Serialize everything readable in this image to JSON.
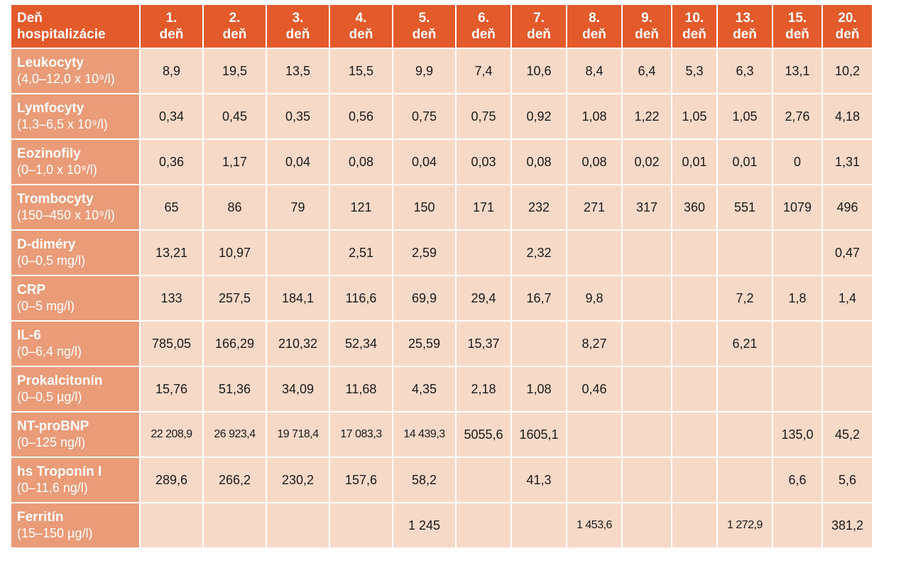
{
  "header": {
    "corner_line1": "Deň",
    "corner_line2": "hospitalizácie",
    "days": [
      {
        "num": "1.",
        "unit": "deň"
      },
      {
        "num": "2.",
        "unit": "deň"
      },
      {
        "num": "3.",
        "unit": "deň"
      },
      {
        "num": "4.",
        "unit": "deň"
      },
      {
        "num": "5.",
        "unit": "deň"
      },
      {
        "num": "6.",
        "unit": "deň"
      },
      {
        "num": "7.",
        "unit": "deň"
      },
      {
        "num": "8.",
        "unit": "deň"
      },
      {
        "num": "9.",
        "unit": "deň"
      },
      {
        "num": "10.",
        "unit": "deň"
      },
      {
        "num": "13.",
        "unit": "deň"
      },
      {
        "num": "15.",
        "unit": "deň"
      },
      {
        "num": "20.",
        "unit": "deň"
      }
    ]
  },
  "rows": [
    {
      "name": "Leukocyty",
      "range": "(4,0–12,0 x 10⁹/l)",
      "values": [
        "8,9",
        "19,5",
        "13,5",
        "15,5",
        "9,9",
        "7,4",
        "10,6",
        "8,4",
        "6,4",
        "5,3",
        "6,3",
        "13,1",
        "10,2"
      ]
    },
    {
      "name": "Lymfocyty",
      "range": "(1,3–6,5 x 10⁹/l)",
      "values": [
        "0,34",
        "0,45",
        "0,35",
        "0,56",
        "0,75",
        "0,75",
        "0,92",
        "1,08",
        "1,22",
        "1,05",
        "1,05",
        "2,76",
        "4,18"
      ]
    },
    {
      "name": "Eozinofily",
      "range": "(0–1,0 x 10⁹/l)",
      "values": [
        "0,36",
        "1,17",
        "0,04",
        "0,08",
        "0,04",
        "0,03",
        "0,08",
        "0,08",
        "0,02",
        "0,01",
        "0,01",
        "0",
        "1,31"
      ]
    },
    {
      "name": "Trombocyty",
      "range": "(150–450 x 10⁹/l)",
      "values": [
        "65",
        "86",
        "79",
        "121",
        "150",
        "171",
        "232",
        "271",
        "317",
        "360",
        "551",
        "1079",
        "496"
      ]
    },
    {
      "name": "D-diméry",
      "range": "(0–0,5 mg/l)",
      "values": [
        "13,21",
        "10,97",
        "",
        "2,51",
        "2,59",
        "",
        "2,32",
        "",
        "",
        "",
        "",
        "",
        "0,47"
      ]
    },
    {
      "name": "CRP",
      "range": "(0–5 mg/l)",
      "values": [
        "133",
        "257,5",
        "184,1",
        "116,6",
        "69,9",
        "29,4",
        "16,7",
        "9,8",
        "",
        "",
        "7,2",
        "1,8",
        "1,4"
      ]
    },
    {
      "name": "IL-6",
      "range": "(0–6,4 ng/l)",
      "values": [
        "785,05",
        "166,29",
        "210,32",
        "52,34",
        "25,59",
        "15,37",
        "",
        "8,27",
        "",
        "",
        "6,21",
        "",
        ""
      ]
    },
    {
      "name": "Prokalcitonín",
      "range": "(0–0,5 µg/l)",
      "values": [
        "15,76",
        "51,36",
        "34,09",
        "11,68",
        "4,35",
        "2,18",
        "1,08",
        "0,46",
        "",
        "",
        "",
        "",
        ""
      ]
    },
    {
      "name": "NT-proBNP",
      "range": "(0–125 ng/l)",
      "values": [
        "22 208,9",
        "26 923,4",
        "19 718,4",
        "17 083,3",
        "14 439,3",
        "5055,6",
        "1605,1",
        "",
        "",
        "",
        "",
        "135,0",
        "45,2"
      ]
    },
    {
      "name": "hs Troponín I",
      "range": "(0–11,6 ng/l)",
      "values": [
        "289,6",
        "266,2",
        "230,2",
        "157,6",
        "58,2",
        "",
        "41,3",
        "",
        "",
        "",
        "",
        "6,6",
        "5,6"
      ]
    },
    {
      "name": "Ferritín",
      "range": "(15–150 µg/l)",
      "values": [
        "",
        "",
        "",
        "",
        "1 245",
        "",
        "",
        "1 453,6",
        "",
        "",
        "1 272,9",
        "",
        "381,2"
      ]
    }
  ]
}
